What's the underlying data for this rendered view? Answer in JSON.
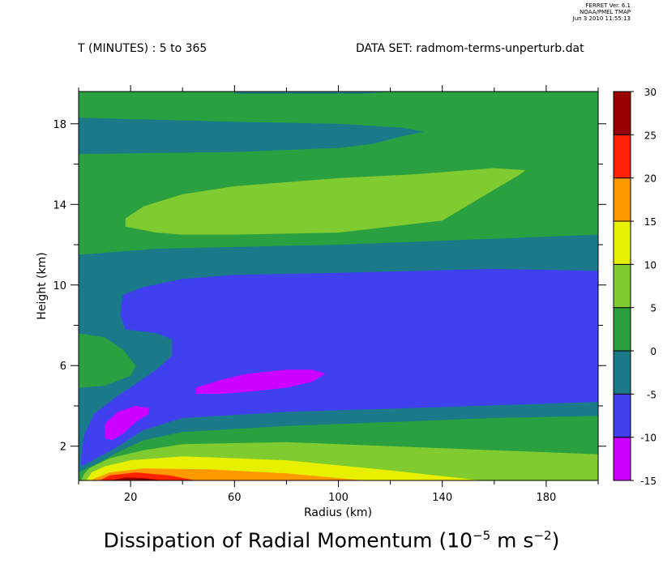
{
  "header": {
    "time_range": "T (MINUTES) : 5 to 365",
    "dataset": "DATA SET: radmom-terms-unperturb.dat",
    "stamp_lines": [
      "FERRET Ver. 6.1",
      "NOAA/PMEL TMAP",
      "Jun 3 2010 11:55:13"
    ]
  },
  "title": {
    "prefix": "Dissipation of Radial Momentum (10",
    "exp1": "−5",
    "middle": " m s",
    "exp2": "−2",
    "suffix": ")"
  },
  "chart_data": {
    "type": "heatmap",
    "xlabel": "Radius (km)",
    "ylabel": "Height (km)",
    "xlim": [
      0,
      200
    ],
    "ylim": [
      0.3,
      19.6
    ],
    "x_ticks": [
      20,
      60,
      100,
      140,
      180
    ],
    "y_ticks": [
      2,
      6,
      10,
      14,
      18
    ],
    "levels": [
      -15,
      -10,
      -5,
      0,
      5,
      10,
      15,
      20,
      25,
      30
    ],
    "colorbar_labels": [
      "30",
      "25",
      "20",
      "15",
      "10",
      "5",
      "0",
      "-5",
      "-10",
      "-15"
    ],
    "level_colors": [
      "#cc00ff",
      "#4040ee",
      "#1a7a8a",
      "#2aa040",
      "#80cc30",
      "#e6f000",
      "#ff9900",
      "#ff2200",
      "#990000"
    ],
    "contour_regions": [
      {
        "band": [
          0,
          5
        ],
        "vertices": [
          [
            0,
            0.3
          ],
          [
            200,
            0.3
          ],
          [
            200,
            19.6
          ],
          [
            0,
            19.6
          ]
        ]
      },
      {
        "band": [
          -5,
          0
        ],
        "vertices": [
          [
            60,
            19.6
          ],
          [
            120,
            19.6
          ],
          [
            110,
            19.5
          ],
          [
            60,
            19.5
          ]
        ]
      },
      {
        "band": [
          -5,
          0
        ],
        "vertices": [
          [
            0,
            16.5
          ],
          [
            60,
            16.6
          ],
          [
            100,
            16.8
          ],
          [
            113,
            17
          ],
          [
            125,
            17.4
          ],
          [
            133,
            17.6
          ],
          [
            125,
            17.8
          ],
          [
            100,
            18
          ],
          [
            60,
            18.1
          ],
          [
            0,
            18.3
          ]
        ]
      },
      {
        "band": [
          5,
          10
        ],
        "vertices": [
          [
            18,
            12.9
          ],
          [
            30,
            12.6
          ],
          [
            40,
            12.5
          ],
          [
            60,
            12.5
          ],
          [
            100,
            12.6
          ],
          [
            140,
            13.2
          ],
          [
            170,
            15.5
          ],
          [
            172,
            15.7
          ],
          [
            160,
            15.8
          ],
          [
            130,
            15.5
          ],
          [
            100,
            15.3
          ],
          [
            60,
            14.9
          ],
          [
            40,
            14.5
          ],
          [
            25,
            13.9
          ],
          [
            18,
            13.3
          ]
        ]
      },
      {
        "band": [
          -5,
          0
        ],
        "vertices": [
          [
            0,
            11.5
          ],
          [
            30,
            11.8
          ],
          [
            100,
            12
          ],
          [
            160,
            12.3
          ],
          [
            200,
            12.5
          ],
          [
            200,
            0.3
          ],
          [
            0,
            0.3
          ]
        ]
      },
      {
        "band": [
          0,
          5
        ],
        "vertices": [
          [
            0,
            7.6
          ],
          [
            10,
            7.4
          ],
          [
            17,
            6.8
          ],
          [
            22,
            6
          ],
          [
            20,
            5.5
          ],
          [
            10,
            5
          ],
          [
            0,
            4.9
          ]
        ]
      },
      {
        "band": [
          -10,
          -5
        ],
        "vertices": [
          [
            200,
            10.7
          ],
          [
            160,
            10.8
          ],
          [
            100,
            10.6
          ],
          [
            60,
            10.5
          ],
          [
            40,
            10.3
          ],
          [
            25,
            9.9
          ],
          [
            17,
            9.5
          ],
          [
            16,
            8.5
          ],
          [
            18,
            7.8
          ],
          [
            30,
            7.6
          ],
          [
            36,
            7.3
          ],
          [
            36,
            6.5
          ],
          [
            30,
            5.8
          ],
          [
            22,
            5.1
          ],
          [
            14,
            4.4
          ],
          [
            6,
            3.6
          ],
          [
            2,
            2.5
          ],
          [
            1,
            1.5
          ],
          [
            1,
            1.0
          ],
          [
            4,
            1.2
          ],
          [
            14,
            1.9
          ],
          [
            25,
            2.8
          ],
          [
            40,
            3.4
          ],
          [
            80,
            3.7
          ],
          [
            130,
            3.9
          ],
          [
            200,
            4.2
          ]
        ]
      },
      {
        "band": [
          -15,
          -10
        ],
        "vertices": [
          [
            45,
            4.9
          ],
          [
            55,
            5.3
          ],
          [
            65,
            5.6
          ],
          [
            80,
            5.8
          ],
          [
            90,
            5.8
          ],
          [
            95,
            5.6
          ],
          [
            90,
            5.2
          ],
          [
            80,
            4.9
          ],
          [
            65,
            4.7
          ],
          [
            55,
            4.6
          ],
          [
            45,
            4.6
          ]
        ]
      },
      {
        "band": [
          -15,
          -10
        ],
        "vertices": [
          [
            10,
            2.4
          ],
          [
            13,
            2.3
          ],
          [
            17,
            2.6
          ],
          [
            22,
            3.2
          ],
          [
            27,
            3.6
          ],
          [
            27,
            3.9
          ],
          [
            22,
            4.0
          ],
          [
            15,
            3.7
          ],
          [
            10,
            3.1
          ]
        ]
      },
      {
        "band": [
          0,
          5
        ],
        "vertices": [
          [
            200,
            3.5
          ],
          [
            160,
            3.4
          ],
          [
            120,
            3.2
          ],
          [
            80,
            3.0
          ],
          [
            40,
            2.7
          ],
          [
            25,
            2.3
          ],
          [
            15,
            1.7
          ],
          [
            8,
            1.2
          ],
          [
            3,
            0.9
          ],
          [
            0,
            0.7
          ],
          [
            0,
            0.3
          ],
          [
            200,
            0.3
          ]
        ]
      },
      {
        "band": [
          5,
          10
        ],
        "vertices": [
          [
            200,
            1.6
          ],
          [
            160,
            1.8
          ],
          [
            120,
            2.0
          ],
          [
            80,
            2.2
          ],
          [
            40,
            2.1
          ],
          [
            25,
            1.8
          ],
          [
            12,
            1.4
          ],
          [
            4,
            0.9
          ],
          [
            2,
            0.6
          ],
          [
            1,
            0.3
          ],
          [
            200,
            0.3
          ]
        ]
      },
      {
        "band": [
          10,
          15
        ],
        "vertices": [
          [
            155,
            0.3
          ],
          [
            120,
            0.8
          ],
          [
            80,
            1.3
          ],
          [
            40,
            1.5
          ],
          [
            20,
            1.3
          ],
          [
            10,
            1.0
          ],
          [
            5,
            0.7
          ],
          [
            3,
            0.3
          ]
        ]
      },
      {
        "band": [
          15,
          20
        ],
        "vertices": [
          [
            110,
            0.3
          ],
          [
            80,
            0.65
          ],
          [
            50,
            0.85
          ],
          [
            25,
            0.9
          ],
          [
            12,
            0.7
          ],
          [
            6,
            0.4
          ],
          [
            5,
            0.3
          ]
        ]
      },
      {
        "band": [
          20,
          25
        ],
        "vertices": [
          [
            45,
            0.3
          ],
          [
            35,
            0.55
          ],
          [
            22,
            0.7
          ],
          [
            12,
            0.55
          ],
          [
            8,
            0.3
          ]
        ]
      },
      {
        "band": [
          25,
          30
        ],
        "vertices": [
          [
            32,
            0.3
          ],
          [
            25,
            0.42
          ],
          [
            18,
            0.45
          ],
          [
            12,
            0.3
          ]
        ]
      }
    ]
  }
}
